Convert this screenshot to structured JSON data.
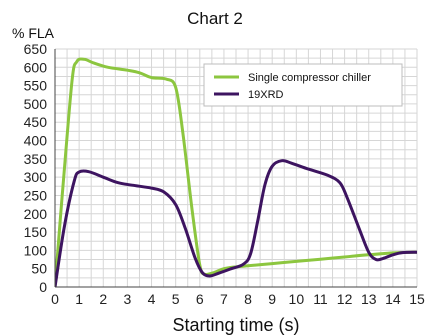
{
  "chart_data": {
    "type": "line",
    "title": "Chart 2",
    "ylabel": "% FLA",
    "xlabel": "Starting time (s)",
    "xlim": [
      0,
      15
    ],
    "ylim": [
      0,
      650
    ],
    "x_ticks": [
      "0",
      "1",
      "2",
      "3",
      "4",
      "5",
      "6",
      "7",
      "8",
      "9",
      "10",
      "11",
      "12",
      "13",
      "14",
      "15"
    ],
    "y_ticks": [
      "0",
      "50",
      "100",
      "150",
      "200",
      "250",
      "300",
      "350",
      "400",
      "450",
      "500",
      "550",
      "600",
      "650"
    ],
    "grid": true,
    "legend_position": "top-right",
    "series": [
      {
        "name": "Single compressor chiller",
        "color": "#8cc63f",
        "points": [
          [
            0,
            0
          ],
          [
            0.3,
            250
          ],
          [
            0.7,
            560
          ],
          [
            0.9,
            615
          ],
          [
            1.2,
            622
          ],
          [
            1.6,
            612
          ],
          [
            2.2,
            600
          ],
          [
            3,
            592
          ],
          [
            3.5,
            585
          ],
          [
            4,
            572
          ],
          [
            4.6,
            568
          ],
          [
            5,
            545
          ],
          [
            5.3,
            420
          ],
          [
            5.7,
            200
          ],
          [
            6,
            60
          ],
          [
            6.2,
            35
          ],
          [
            6.6,
            40
          ],
          [
            7,
            50
          ],
          [
            7.5,
            55
          ],
          [
            8,
            58
          ],
          [
            9,
            64
          ],
          [
            10,
            70
          ],
          [
            11,
            76
          ],
          [
            12,
            82
          ],
          [
            13,
            88
          ],
          [
            14,
            93
          ],
          [
            15,
            95
          ]
        ]
      },
      {
        "name": "19XRD",
        "color": "#3d1460",
        "points": [
          [
            0,
            0
          ],
          [
            0.4,
            170
          ],
          [
            0.8,
            290
          ],
          [
            1,
            314
          ],
          [
            1.4,
            315
          ],
          [
            2,
            300
          ],
          [
            2.6,
            285
          ],
          [
            3.2,
            278
          ],
          [
            4,
            270
          ],
          [
            4.5,
            260
          ],
          [
            5,
            225
          ],
          [
            5.4,
            160
          ],
          [
            5.8,
            80
          ],
          [
            6.1,
            40
          ],
          [
            6.4,
            30
          ],
          [
            6.8,
            38
          ],
          [
            7.3,
            50
          ],
          [
            7.8,
            62
          ],
          [
            8.1,
            90
          ],
          [
            8.4,
            180
          ],
          [
            8.7,
            280
          ],
          [
            9,
            330
          ],
          [
            9.4,
            345
          ],
          [
            9.8,
            338
          ],
          [
            10.5,
            322
          ],
          [
            11.3,
            305
          ],
          [
            11.8,
            285
          ],
          [
            12.1,
            245
          ],
          [
            12.6,
            160
          ],
          [
            13,
            95
          ],
          [
            13.3,
            75
          ],
          [
            13.6,
            78
          ],
          [
            14,
            88
          ],
          [
            14.4,
            94
          ],
          [
            15,
            95
          ]
        ]
      }
    ]
  }
}
